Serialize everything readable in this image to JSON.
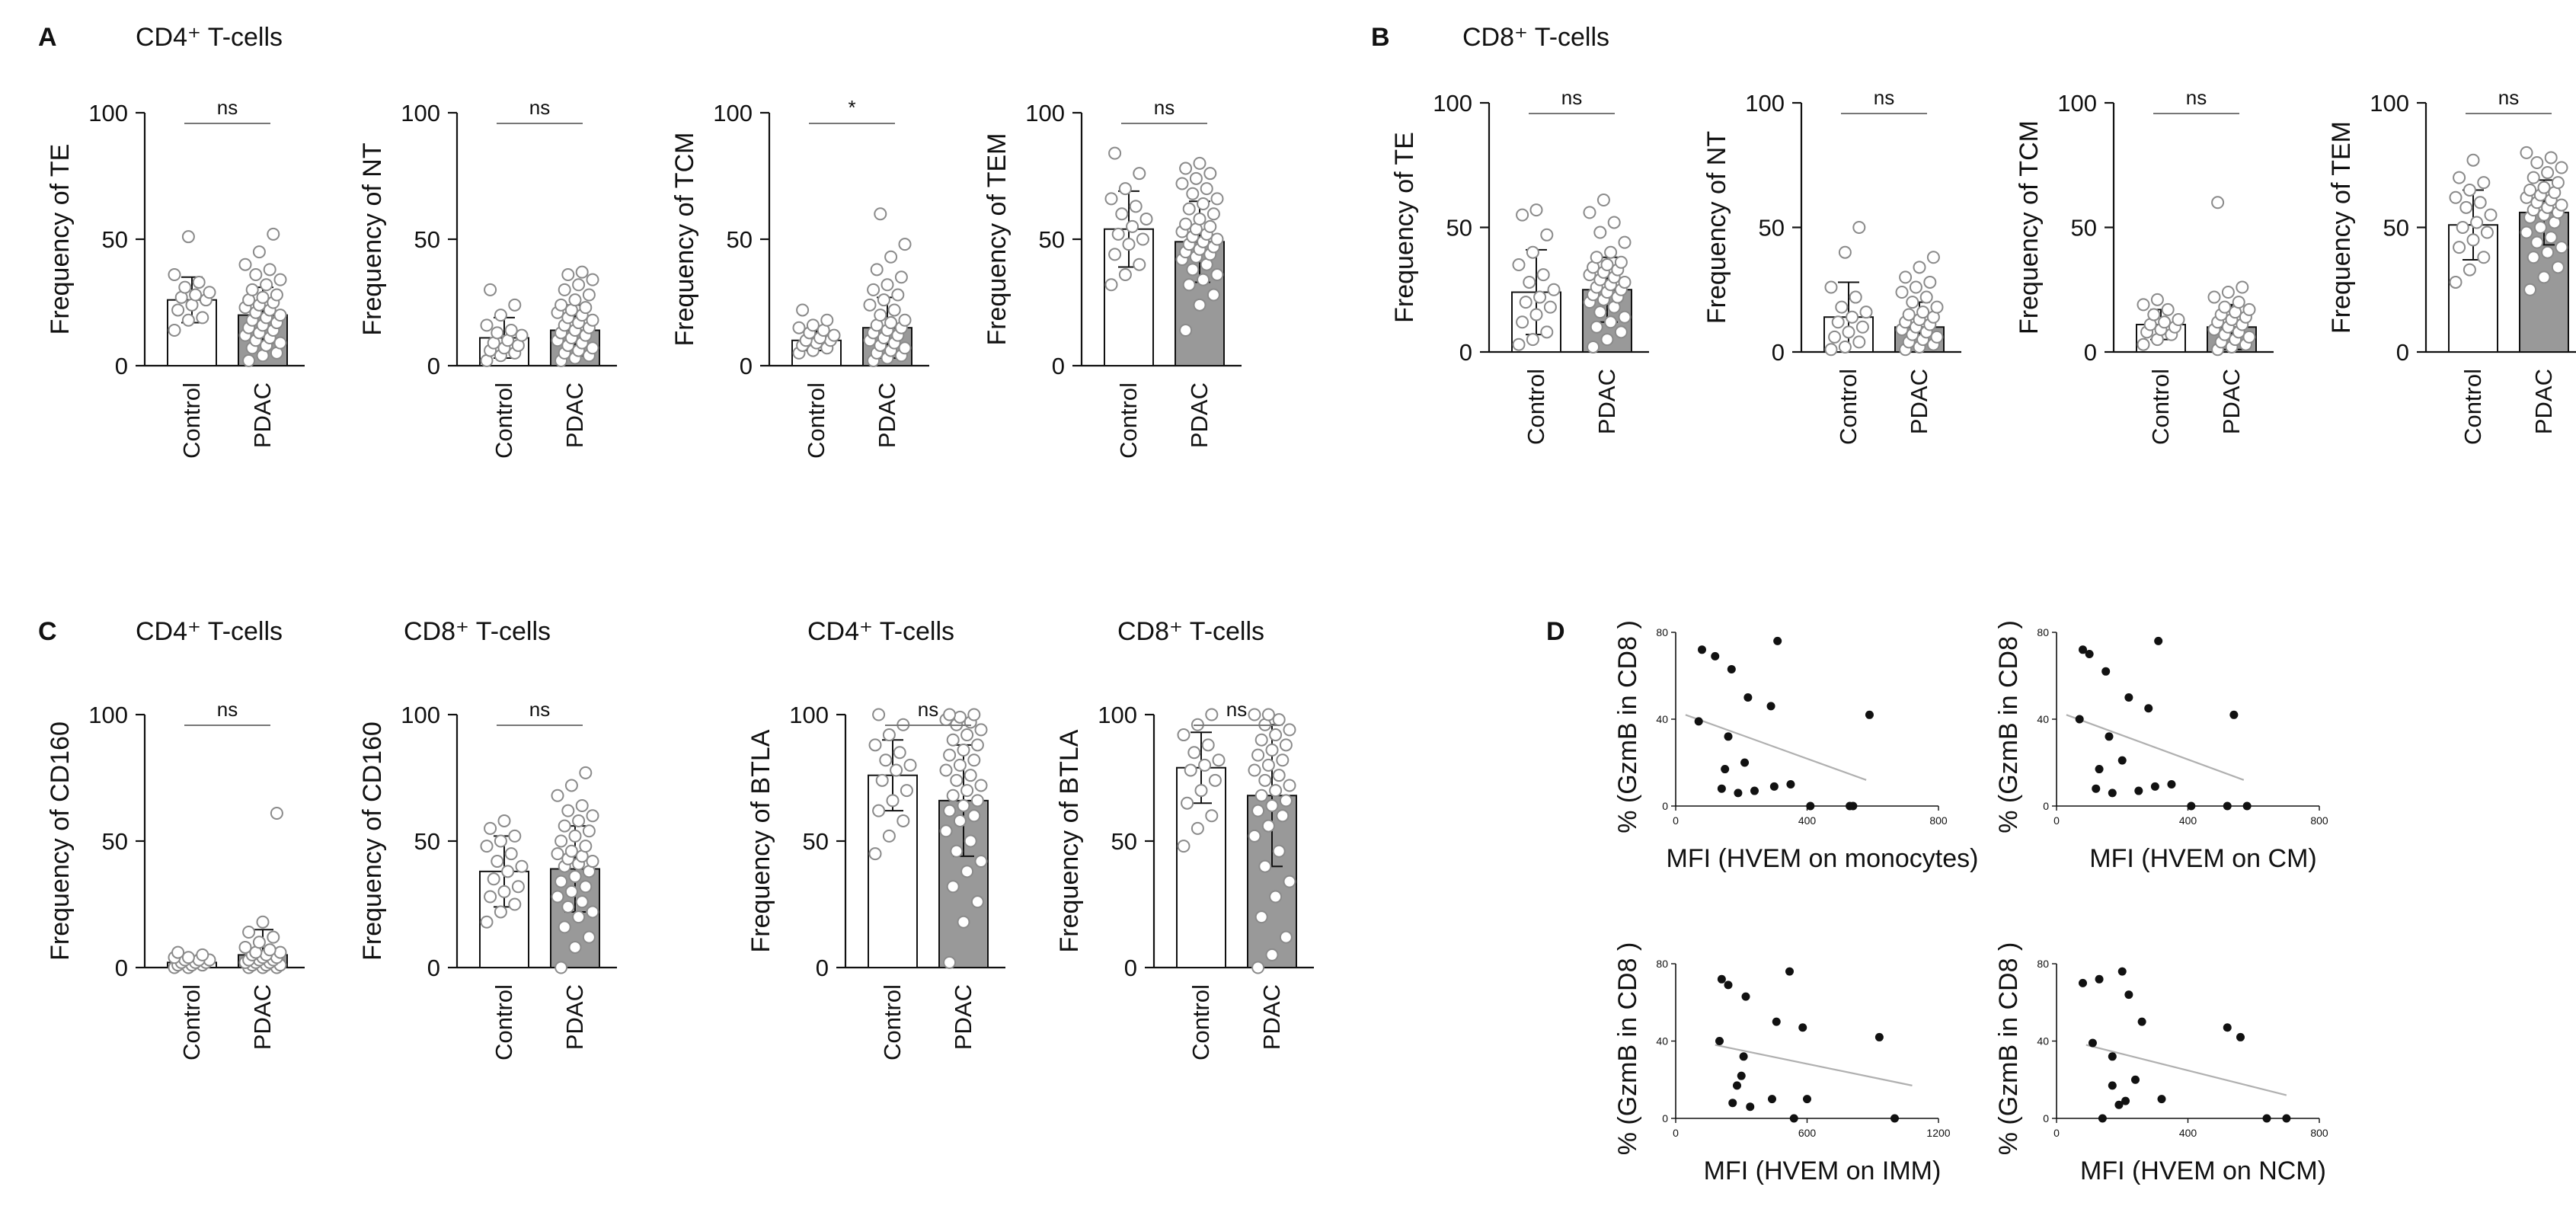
{
  "panels": [
    {
      "letter": "A",
      "title": "CD4⁺ T-cells"
    },
    {
      "letter": "B",
      "title": "CD8⁺ T-cells"
    },
    {
      "letter": "C",
      "title": ""
    },
    {
      "letter": "D",
      "title": ""
    }
  ],
  "group_titles": {
    "c1": "CD4⁺ T-cells",
    "c2": "CD8⁺ T-cells",
    "c3": "CD4⁺ T-cells",
    "c4": "CD8⁺ T-cells"
  },
  "colors": {
    "control_bar": "#ffffff",
    "pdac_bar": "#999999",
    "axis": "#111111",
    "fit_line": "#b0b0b0",
    "dot": "#111111"
  },
  "chart_data": [
    {
      "id": "A1",
      "type": "bar",
      "panel": "A",
      "ylabel": "Frequency of TE",
      "categories": [
        "Control",
        "PDAC"
      ],
      "values": [
        26,
        20
      ],
      "sd": [
        9,
        11
      ],
      "ylim": [
        0,
        100
      ],
      "yticks": [
        0,
        50,
        100
      ],
      "significance": "ns",
      "points": [
        [
          14,
          18,
          19,
          22,
          24,
          26,
          27,
          28,
          29,
          31,
          33,
          36,
          51
        ],
        [
          2,
          4,
          5,
          7,
          8,
          9,
          10,
          11,
          12,
          13,
          14,
          15,
          16,
          17,
          18,
          19,
          20,
          21,
          22,
          23,
          24,
          25,
          26,
          27,
          28,
          30,
          32,
          34,
          36,
          38,
          40,
          45,
          52
        ]
      ]
    },
    {
      "id": "A2",
      "type": "bar",
      "panel": "A",
      "ylabel": "Frequency of NT",
      "categories": [
        "Control",
        "PDAC"
      ],
      "values": [
        11,
        14
      ],
      "sd": [
        8,
        10
      ],
      "ylim": [
        0,
        100
      ],
      "yticks": [
        0,
        50,
        100
      ],
      "significance": "ns",
      "points": [
        [
          2,
          4,
          5,
          6,
          7,
          8,
          9,
          10,
          12,
          13,
          14,
          16,
          20,
          24,
          30
        ],
        [
          2,
          3,
          4,
          5,
          6,
          7,
          8,
          9,
          10,
          11,
          12,
          13,
          14,
          15,
          16,
          17,
          18,
          19,
          20,
          21,
          22,
          23,
          24,
          26,
          28,
          30,
          32,
          34,
          36,
          37
        ]
      ]
    },
    {
      "id": "A3",
      "type": "bar",
      "panel": "A",
      "ylabel": "Frequency of TCM",
      "categories": [
        "Control",
        "PDAC"
      ],
      "values": [
        10,
        15
      ],
      "sd": [
        4,
        12
      ],
      "ylim": [
        0,
        100
      ],
      "yticks": [
        0,
        50,
        100
      ],
      "significance": "*",
      "points": [
        [
          5,
          6,
          7,
          8,
          9,
          10,
          10,
          11,
          12,
          13,
          14,
          15,
          16,
          18,
          22
        ],
        [
          2,
          3,
          4,
          5,
          6,
          7,
          8,
          9,
          10,
          11,
          12,
          13,
          14,
          15,
          16,
          17,
          18,
          20,
          22,
          24,
          26,
          28,
          30,
          32,
          35,
          38,
          43,
          48,
          60
        ]
      ]
    },
    {
      "id": "A4",
      "type": "bar",
      "panel": "A",
      "ylabel": "Frequency of TEM",
      "categories": [
        "Control",
        "PDAC"
      ],
      "values": [
        54,
        49
      ],
      "sd": [
        15,
        16
      ],
      "ylim": [
        0,
        100
      ],
      "yticks": [
        0,
        50,
        100
      ],
      "significance": "ns",
      "points": [
        [
          32,
          36,
          40,
          44,
          48,
          50,
          52,
          55,
          58,
          60,
          63,
          66,
          70,
          76,
          84
        ],
        [
          14,
          24,
          28,
          32,
          34,
          36,
          38,
          40,
          42,
          43,
          44,
          45,
          46,
          47,
          48,
          49,
          50,
          51,
          52,
          53,
          54,
          55,
          56,
          58,
          60,
          62,
          64,
          66,
          68,
          70,
          72,
          74,
          76,
          78,
          80
        ]
      ]
    },
    {
      "id": "B1",
      "type": "bar",
      "panel": "B",
      "ylabel": "Frequency of TE",
      "categories": [
        "Control",
        "PDAC"
      ],
      "values": [
        24,
        25
      ],
      "sd": [
        17,
        13
      ],
      "ylim": [
        0,
        100
      ],
      "yticks": [
        0,
        50,
        100
      ],
      "significance": "ns",
      "points": [
        [
          3,
          5,
          8,
          12,
          15,
          18,
          20,
          22,
          25,
          28,
          31,
          35,
          40,
          47,
          55,
          57
        ],
        [
          2,
          5,
          8,
          10,
          12,
          14,
          16,
          18,
          20,
          21,
          22,
          23,
          24,
          25,
          26,
          27,
          28,
          29,
          30,
          31,
          32,
          33,
          34,
          35,
          36,
          38,
          40,
          44,
          48,
          52,
          56,
          61
        ]
      ]
    },
    {
      "id": "B2",
      "type": "bar",
      "panel": "B",
      "ylabel": "Frequency of NT",
      "categories": [
        "Control",
        "PDAC"
      ],
      "values": [
        14,
        10
      ],
      "sd": [
        14,
        10
      ],
      "ylim": [
        0,
        100
      ],
      "yticks": [
        0,
        50,
        100
      ],
      "significance": "ns",
      "points": [
        [
          1,
          2,
          4,
          6,
          8,
          10,
          12,
          14,
          16,
          18,
          22,
          26,
          40,
          50
        ],
        [
          1,
          2,
          3,
          4,
          5,
          6,
          7,
          8,
          9,
          10,
          11,
          12,
          13,
          14,
          15,
          16,
          18,
          20,
          22,
          24,
          26,
          28,
          30,
          34,
          38
        ]
      ]
    },
    {
      "id": "B3",
      "type": "bar",
      "panel": "B",
      "ylabel": "Frequency of TCM",
      "categories": [
        "Control",
        "PDAC"
      ],
      "values": [
        11,
        10
      ],
      "sd": [
        6,
        9
      ],
      "ylim": [
        0,
        100
      ],
      "yticks": [
        0,
        50,
        100
      ],
      "significance": "ns",
      "points": [
        [
          3,
          5,
          7,
          8,
          9,
          10,
          11,
          12,
          13,
          15,
          17,
          19,
          21
        ],
        [
          1,
          2,
          3,
          4,
          5,
          6,
          7,
          8,
          9,
          10,
          11,
          12,
          13,
          14,
          15,
          16,
          17,
          18,
          20,
          22,
          24,
          26,
          60
        ]
      ]
    },
    {
      "id": "B4",
      "type": "bar",
      "panel": "B",
      "ylabel": "Frequency of TEM",
      "categories": [
        "Control",
        "PDAC"
      ],
      "values": [
        51,
        56
      ],
      "sd": [
        14,
        13
      ],
      "ylim": [
        0,
        100
      ],
      "yticks": [
        0,
        50,
        100
      ],
      "significance": "ns",
      "points": [
        [
          28,
          33,
          38,
          42,
          45,
          48,
          50,
          52,
          55,
          58,
          60,
          62,
          65,
          68,
          70,
          77
        ],
        [
          25,
          30,
          34,
          38,
          40,
          42,
          44,
          46,
          48,
          50,
          52,
          54,
          55,
          56,
          57,
          58,
          59,
          60,
          61,
          62,
          63,
          64,
          65,
          66,
          68,
          70,
          72,
          74,
          76,
          78,
          80
        ]
      ]
    },
    {
      "id": "C1",
      "type": "bar",
      "panel": "C",
      "ylabel": "Frequency of CD160",
      "categories": [
        "Control",
        "PDAC"
      ],
      "values": [
        2,
        5
      ],
      "sd": [
        2,
        10
      ],
      "ylim": [
        0,
        100
      ],
      "yticks": [
        0,
        50,
        100
      ],
      "significance": "ns",
      "points": [
        [
          0,
          0,
          1,
          1,
          1,
          2,
          2,
          2,
          3,
          3,
          3,
          4,
          4,
          5,
          6
        ],
        [
          0,
          0,
          0,
          1,
          1,
          1,
          2,
          2,
          2,
          3,
          3,
          3,
          4,
          4,
          5,
          5,
          6,
          6,
          7,
          8,
          10,
          12,
          14,
          18,
          61
        ]
      ]
    },
    {
      "id": "C2",
      "type": "bar",
      "panel": "C",
      "ylabel": "Frequency of CD160",
      "categories": [
        "Control",
        "PDAC"
      ],
      "values": [
        38,
        39
      ],
      "sd": [
        14,
        17
      ],
      "ylim": [
        0,
        100
      ],
      "yticks": [
        0,
        50,
        100
      ],
      "significance": "ns",
      "points": [
        [
          18,
          22,
          25,
          28,
          30,
          32,
          35,
          38,
          40,
          42,
          45,
          48,
          50,
          52,
          55,
          58
        ],
        [
          0,
          8,
          12,
          16,
          20,
          22,
          24,
          26,
          28,
          30,
          32,
          34,
          36,
          38,
          40,
          41,
          42,
          43,
          44,
          45,
          46,
          48,
          50,
          52,
          54,
          56,
          58,
          60,
          62,
          64,
          68,
          72,
          77
        ]
      ]
    },
    {
      "id": "C3",
      "type": "bar",
      "panel": "C",
      "ylabel": "Frequency of BTLA",
      "categories": [
        "Control",
        "PDAC"
      ],
      "values": [
        76,
        66
      ],
      "sd": [
        14,
        22
      ],
      "ylim": [
        0,
        100
      ],
      "yticks": [
        0,
        50,
        100
      ],
      "significance": "ns",
      "points": [
        [
          45,
          52,
          58,
          62,
          66,
          70,
          74,
          78,
          80,
          82,
          85,
          88,
          92,
          96,
          100
        ],
        [
          2,
          18,
          26,
          32,
          38,
          42,
          46,
          50,
          54,
          58,
          60,
          62,
          64,
          66,
          68,
          70,
          72,
          74,
          76,
          78,
          80,
          82,
          84,
          86,
          88,
          90,
          92,
          94,
          96,
          97,
          98,
          99,
          100,
          100
        ]
      ]
    },
    {
      "id": "C4",
      "type": "bar",
      "panel": "C",
      "ylabel": "Frequency of BTLA",
      "categories": [
        "Control",
        "PDAC"
      ],
      "values": [
        79,
        68
      ],
      "sd": [
        14,
        28
      ],
      "ylim": [
        0,
        100
      ],
      "yticks": [
        0,
        50,
        100
      ],
      "significance": "ns",
      "points": [
        [
          48,
          55,
          60,
          65,
          70,
          74,
          78,
          80,
          82,
          85,
          88,
          92,
          96,
          100
        ],
        [
          0,
          5,
          12,
          20,
          28,
          34,
          40,
          46,
          52,
          56,
          60,
          62,
          64,
          66,
          68,
          70,
          72,
          74,
          76,
          78,
          80,
          82,
          84,
          86,
          88,
          90,
          92,
          94,
          96,
          98,
          100,
          100
        ]
      ]
    },
    {
      "id": "D1",
      "type": "scatter",
      "panel": "D",
      "xlabel": "MFI (HVEM on monocytes)",
      "ylabel": "% (GzmB in CD8 )",
      "xlim": [
        0,
        800
      ],
      "ylim": [
        0,
        80
      ],
      "xticks": [
        0,
        400,
        800
      ],
      "yticks": [
        0,
        40,
        80
      ],
      "points": [
        [
          70,
          39
        ],
        [
          80,
          72
        ],
        [
          120,
          69
        ],
        [
          140,
          8
        ],
        [
          150,
          17
        ],
        [
          160,
          32
        ],
        [
          170,
          63
        ],
        [
          190,
          6
        ],
        [
          210,
          20
        ],
        [
          220,
          50
        ],
        [
          240,
          7
        ],
        [
          290,
          46
        ],
        [
          300,
          9
        ],
        [
          310,
          76
        ],
        [
          350,
          10
        ],
        [
          410,
          0
        ],
        [
          530,
          0
        ],
        [
          540,
          0
        ],
        [
          590,
          42
        ]
      ],
      "fit": [
        [
          30,
          42
        ],
        [
          580,
          12
        ]
      ]
    },
    {
      "id": "D2",
      "type": "scatter",
      "panel": "D",
      "xlabel": "MFI (HVEM on CM)",
      "ylabel": "% (GzmB in CD8 )",
      "xlim": [
        0,
        800
      ],
      "ylim": [
        0,
        80
      ],
      "xticks": [
        0,
        400,
        800
      ],
      "yticks": [
        0,
        40,
        80
      ],
      "points": [
        [
          70,
          40
        ],
        [
          80,
          72
        ],
        [
          100,
          70
        ],
        [
          120,
          8
        ],
        [
          130,
          17
        ],
        [
          150,
          62
        ],
        [
          160,
          32
        ],
        [
          170,
          6
        ],
        [
          200,
          21
        ],
        [
          220,
          50
        ],
        [
          250,
          7
        ],
        [
          280,
          45
        ],
        [
          300,
          9
        ],
        [
          310,
          76
        ],
        [
          350,
          10
        ],
        [
          410,
          0
        ],
        [
          520,
          0
        ],
        [
          540,
          42
        ],
        [
          580,
          0
        ]
      ],
      "fit": [
        [
          30,
          42
        ],
        [
          570,
          12
        ]
      ]
    },
    {
      "id": "D3",
      "type": "scatter",
      "panel": "D",
      "xlabel": "MFI (HVEM on IMM)",
      "ylabel": "% (GzmB in CD8 )",
      "xlim": [
        0,
        1200
      ],
      "ylim": [
        0,
        80
      ],
      "xticks": [
        0,
        600,
        1200
      ],
      "yticks": [
        0,
        40,
        80
      ],
      "points": [
        [
          200,
          40
        ],
        [
          210,
          72
        ],
        [
          240,
          69
        ],
        [
          260,
          8
        ],
        [
          280,
          17
        ],
        [
          300,
          22
        ],
        [
          310,
          32
        ],
        [
          320,
          63
        ],
        [
          340,
          6
        ],
        [
          440,
          10
        ],
        [
          460,
          50
        ],
        [
          520,
          76
        ],
        [
          540,
          0
        ],
        [
          580,
          47
        ],
        [
          600,
          10
        ],
        [
          930,
          42
        ],
        [
          1000,
          0
        ]
      ],
      "fit": [
        [
          180,
          38
        ],
        [
          1080,
          17
        ]
      ]
    },
    {
      "id": "D4",
      "type": "scatter",
      "panel": "D",
      "xlabel": "MFI (HVEM on NCM)",
      "ylabel": "% (GzmB in CD8 )",
      "xlim": [
        0,
        800
      ],
      "ylim": [
        0,
        80
      ],
      "xticks": [
        0,
        400,
        800
      ],
      "yticks": [
        0,
        40,
        80
      ],
      "points": [
        [
          80,
          70
        ],
        [
          110,
          39
        ],
        [
          130,
          72
        ],
        [
          140,
          0
        ],
        [
          170,
          32
        ],
        [
          170,
          17
        ],
        [
          190,
          7
        ],
        [
          200,
          76
        ],
        [
          210,
          9
        ],
        [
          220,
          64
        ],
        [
          240,
          20
        ],
        [
          260,
          50
        ],
        [
          320,
          10
        ],
        [
          520,
          47
        ],
        [
          560,
          42
        ],
        [
          640,
          0
        ],
        [
          700,
          0
        ]
      ],
      "fit": [
        [
          90,
          38
        ],
        [
          700,
          12
        ]
      ]
    }
  ]
}
